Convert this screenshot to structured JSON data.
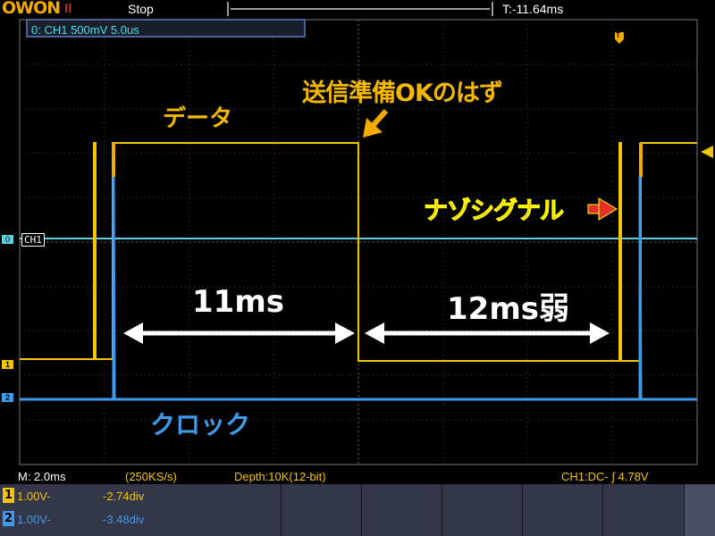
{
  "header": {
    "logo": "OWON",
    "run_indicator": "II",
    "status": "Stop",
    "trigger_time": "T:-11.64ms"
  },
  "info_box": "0: CH1 500mV 5.0us",
  "markers": {
    "ch1_ref": "CH1",
    "zero": "0",
    "ch1": "1",
    "ch2": "2",
    "trigger": "T"
  },
  "annotations": {
    "data": "データ",
    "ready": "送信準備OKのはず",
    "mystery": "ナゾシグナル",
    "span1": "11ms",
    "span2": "12ms弱",
    "clock": "クロック"
  },
  "bottom": {
    "timebase": "M: 2.0ms",
    "sample_rate": "(250KS/s)",
    "depth": "Depth:10K(12-bit)",
    "trigger": "CH1:DC- ∫ 4.78V"
  },
  "channels": [
    {
      "num": "1",
      "volts": "1.00V-",
      "offset": "-2.74div",
      "color": "#f5c400"
    },
    {
      "num": "2",
      "volts": "1.00V-",
      "offset": "-3.48div",
      "color": "#3d9be9"
    }
  ],
  "colors": {
    "ch1": "#f5c400",
    "ch2": "#3d9be9",
    "ref": "#5fd0e0",
    "accent": "#f2a900"
  }
}
